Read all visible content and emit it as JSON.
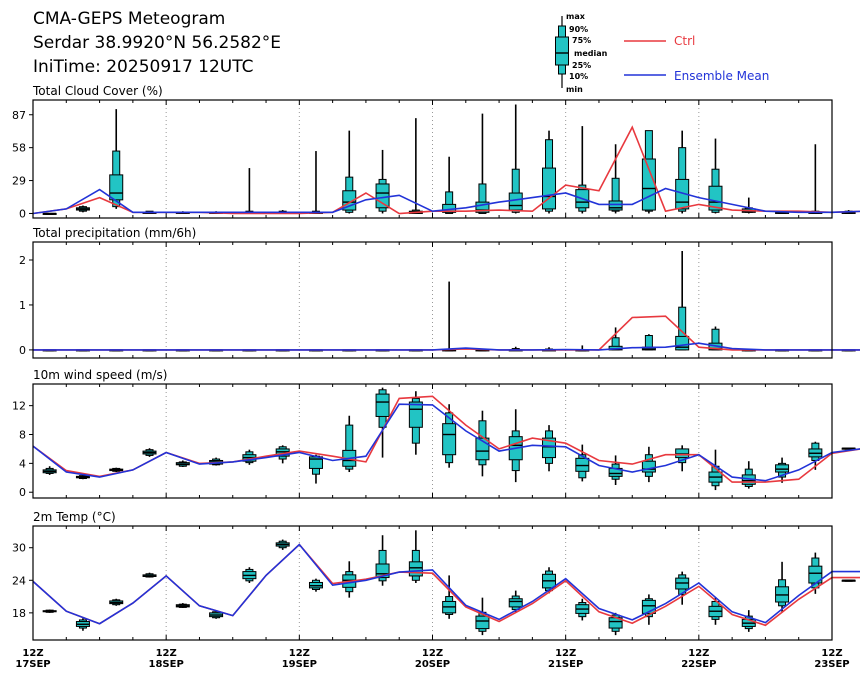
{
  "header": {
    "title": "CMA-GEPS Meteogram",
    "location": "Serdar 38.9920°N 56.2582°E",
    "init": "IniTime: 20250917 12UTC"
  },
  "legend": {
    "max": "max",
    "p90": "90%",
    "p75": "75%",
    "median": "median",
    "p25": "25%",
    "p10": "10%",
    "min": "min",
    "ctrl": "Ctrl",
    "mean": "Ensemble Mean"
  },
  "colors": {
    "ctrl": "#e8393f",
    "mean": "#2233d8",
    "box": "#22c4c4"
  },
  "x_axis": {
    "step_hours": 6,
    "labels": [
      {
        "top": "12Z",
        "bottom": "17SEP"
      },
      {
        "top": "12Z",
        "bottom": "18SEP"
      },
      {
        "top": "12Z",
        "bottom": "19SEP"
      },
      {
        "top": "12Z",
        "bottom": "20SEP"
      },
      {
        "top": "12Z",
        "bottom": "21SEP"
      },
      {
        "top": "12Z",
        "bottom": "22SEP"
      },
      {
        "top": "12Z",
        "bottom": "23SEP"
      }
    ]
  },
  "chart_data": [
    {
      "type": "box",
      "title": "Total Cloud Cover (%)",
      "ylim": [
        -4,
        100
      ],
      "yticks": [
        0,
        29,
        58,
        87
      ],
      "grid": "vertical dotted",
      "ctrl": [
        0,
        4,
        14,
        1,
        1,
        1,
        0,
        0,
        0,
        1,
        18,
        0,
        2,
        2,
        3,
        2,
        25,
        20,
        76,
        2,
        8,
        3,
        2,
        2,
        1,
        2
      ],
      "mean": [
        0,
        4,
        21,
        1,
        1,
        1,
        1,
        1,
        1,
        1,
        12,
        16,
        2,
        5,
        10,
        14,
        18,
        8,
        8,
        22,
        14,
        8,
        2,
        1,
        1,
        2
      ],
      "boxes": [
        [
          0,
          0,
          0,
          0,
          0,
          0,
          0
        ],
        [
          1,
          2,
          3,
          4,
          5,
          6,
          7
        ],
        [
          4,
          6,
          12,
          18,
          34,
          55,
          92
        ],
        [
          0,
          0,
          0,
          1,
          1,
          2,
          2
        ],
        [
          0,
          0,
          0,
          1,
          1,
          1,
          2
        ],
        [
          0,
          0,
          0,
          1,
          1,
          1,
          2
        ],
        [
          0,
          0,
          0,
          1,
          1,
          2,
          40
        ],
        [
          0,
          0,
          0,
          1,
          1,
          2,
          3
        ],
        [
          0,
          0,
          0,
          1,
          1,
          2,
          55
        ],
        [
          0,
          1,
          3,
          10,
          20,
          32,
          73
        ],
        [
          0,
          2,
          5,
          18,
          26,
          30,
          56
        ],
        [
          0,
          0,
          0,
          1,
          2,
          3,
          84
        ],
        [
          0,
          0,
          1,
          2,
          8,
          19,
          50
        ],
        [
          0,
          0,
          1,
          3,
          10,
          26,
          88
        ],
        [
          0,
          1,
          3,
          7,
          18,
          39,
          96
        ],
        [
          0,
          2,
          4,
          15,
          40,
          65,
          73
        ],
        [
          0,
          2,
          5,
          10,
          21,
          25,
          77
        ],
        [
          0,
          2,
          3,
          5,
          11,
          31,
          61
        ],
        [
          0,
          2,
          3,
          22,
          48,
          73,
          73
        ],
        [
          0,
          2,
          4,
          10,
          30,
          58,
          73
        ],
        [
          0,
          1,
          3,
          10,
          24,
          39,
          66
        ],
        [
          0,
          1,
          1,
          2,
          4,
          5,
          14
        ],
        [
          0,
          0,
          0,
          1,
          1,
          2,
          2
        ],
        [
          0,
          0,
          0,
          1,
          1,
          2,
          61
        ],
        [
          0,
          0,
          0,
          1,
          1,
          2,
          3
        ]
      ]
    },
    {
      "type": "box",
      "title": "Total precipitation (mm/6h)",
      "ylim": [
        -0.18,
        2.4
      ],
      "yticks": [
        0,
        1,
        2
      ],
      "grid": "vertical dotted",
      "ctrl": [
        0,
        0,
        0,
        0,
        0,
        0,
        0,
        0,
        0,
        0,
        0,
        0,
        0,
        0.02,
        0,
        0,
        0,
        0,
        0.72,
        0.75,
        0.06,
        0,
        0,
        0,
        0,
        0
      ],
      "mean": [
        0,
        0,
        0,
        0,
        0,
        0,
        0,
        0,
        0,
        0,
        0,
        0,
        0,
        0.04,
        0,
        0,
        0.01,
        0,
        0.05,
        0.06,
        0.15,
        0.03,
        0,
        0,
        0,
        0
      ],
      "boxes": [
        [
          0,
          0,
          0,
          0,
          0,
          0,
          0
        ],
        [
          0,
          0,
          0,
          0,
          0,
          0,
          0
        ],
        [
          0,
          0,
          0,
          0,
          0,
          0,
          0
        ],
        [
          0,
          0,
          0,
          0,
          0,
          0,
          0
        ],
        [
          0,
          0,
          0,
          0,
          0,
          0,
          0
        ],
        [
          0,
          0,
          0,
          0,
          0,
          0,
          0
        ],
        [
          0,
          0,
          0,
          0,
          0,
          0,
          0
        ],
        [
          0,
          0,
          0,
          0,
          0,
          0,
          0
        ],
        [
          0,
          0,
          0,
          0,
          0,
          0,
          0
        ],
        [
          0,
          0,
          0,
          0,
          0,
          0,
          0
        ],
        [
          0,
          0,
          0,
          0,
          0,
          0,
          0
        ],
        [
          0,
          0,
          0,
          0,
          0,
          0,
          0
        ],
        [
          0,
          0,
          0,
          0,
          0,
          0,
          1.52
        ],
        [
          0,
          0,
          0,
          0,
          0,
          0,
          0.03
        ],
        [
          0,
          0,
          0,
          0,
          0,
          0.03,
          0.07
        ],
        [
          0,
          0,
          0,
          0,
          0,
          0.02,
          0.06
        ],
        [
          0,
          0,
          0,
          0,
          0,
          0,
          0.1
        ],
        [
          0,
          0,
          0,
          0.02,
          0.08,
          0.27,
          0.5
        ],
        [
          0,
          0,
          0,
          0.02,
          0.06,
          0.32,
          0.35
        ],
        [
          0,
          0,
          0,
          0.06,
          0.3,
          0.95,
          2.2
        ],
        [
          0,
          0,
          0,
          0.03,
          0.15,
          0.46,
          0.52
        ],
        [
          0,
          0,
          0,
          0,
          0,
          0,
          0
        ],
        [
          0,
          0,
          0,
          0,
          0,
          0,
          0
        ],
        [
          0,
          0,
          0,
          0,
          0,
          0,
          0
        ],
        [
          0,
          0,
          0,
          0,
          0,
          0,
          0
        ]
      ]
    },
    {
      "type": "box",
      "title": "10m wind speed (m/s)",
      "ylim": [
        -0.8,
        15
      ],
      "yticks": [
        0,
        4,
        8,
        12
      ],
      "grid": "vertical dotted",
      "ctrl": [
        6.4,
        3.0,
        2.2,
        3.1,
        5.5,
        4.0,
        4.2,
        5.0,
        5.7,
        5.0,
        4.2,
        13.0,
        13.3,
        9.3,
        6.0,
        7.5,
        6.8,
        4.4,
        3.9,
        5.2,
        5.2,
        1.4,
        1.4,
        1.8,
        5.4,
        6.1
      ],
      "mean": [
        6.4,
        2.8,
        2.1,
        3.1,
        5.5,
        3.9,
        4.2,
        4.8,
        5.5,
        4.4,
        5.0,
        12.2,
        12.1,
        8.5,
        5.7,
        6.5,
        6.3,
        3.7,
        2.8,
        3.7,
        5.2,
        2.1,
        1.6,
        3.1,
        5.5,
        6.1
      ],
      "boxes": [
        [
          2.4,
          2.6,
          2.7,
          2.9,
          3.1,
          3.3,
          3.6
        ],
        [
          1.8,
          1.9,
          2.0,
          2.1,
          2.2,
          2.3,
          2.4
        ],
        [
          2.8,
          2.9,
          3.0,
          3.1,
          3.2,
          3.3,
          3.4
        ],
        [
          4.9,
          5.1,
          5.3,
          5.5,
          5.7,
          5.9,
          6.1
        ],
        [
          3.5,
          3.6,
          3.8,
          3.9,
          4.1,
          4.2,
          4.4
        ],
        [
          3.7,
          3.8,
          3.9,
          4.2,
          4.4,
          4.6,
          4.8
        ],
        [
          3.8,
          4.1,
          4.3,
          4.8,
          5.2,
          5.6,
          5.9
        ],
        [
          4.0,
          4.6,
          5.0,
          5.6,
          6.0,
          6.3,
          6.5
        ],
        [
          1.2,
          2.5,
          3.3,
          4.6,
          4.9,
          5.0,
          5.2
        ],
        [
          2.8,
          3.2,
          3.6,
          4.4,
          5.8,
          9.3,
          10.6
        ],
        [
          4.8,
          9.0,
          10.5,
          12.5,
          13.6,
          14.2,
          14.5
        ],
        [
          5.2,
          6.8,
          9.0,
          11.5,
          12.5,
          13.0,
          14.0
        ],
        [
          3.4,
          4.1,
          5.2,
          8.0,
          9.5,
          11.0,
          12.2
        ],
        [
          2.2,
          3.8,
          4.5,
          5.7,
          7.5,
          9.9,
          11.3
        ],
        [
          1.4,
          3.0,
          4.5,
          6.5,
          7.7,
          8.5,
          11.5
        ],
        [
          2.9,
          4.0,
          4.8,
          6.3,
          7.5,
          8.5,
          9.3
        ],
        [
          1.5,
          2.0,
          2.9,
          3.7,
          4.7,
          5.2,
          6.6
        ],
        [
          1.0,
          1.8,
          2.2,
          2.6,
          3.3,
          3.9,
          5.1
        ],
        [
          1.4,
          2.2,
          2.8,
          3.2,
          4.3,
          5.2,
          6.3
        ],
        [
          2.9,
          4.1,
          4.8,
          5.3,
          6.0,
          6.0,
          6.5
        ],
        [
          0.3,
          0.9,
          1.4,
          2.1,
          2.8,
          3.6,
          5.9
        ],
        [
          0.5,
          0.8,
          1.1,
          1.6,
          2.4,
          3.2,
          4.3
        ],
        [
          1.3,
          2.1,
          2.8,
          3.2,
          3.8,
          4.0,
          4.8
        ],
        [
          3.1,
          4.4,
          4.9,
          5.4,
          6.0,
          6.8,
          7.0
        ],
        [
          6.1,
          6.1,
          6.1,
          6.1,
          6.1,
          6.1,
          6.1
        ]
      ]
    },
    {
      "type": "box",
      "title": "2m Temp (°C)",
      "ylim": [
        13,
        34
      ],
      "yticks": [
        18,
        24,
        30
      ],
      "grid": "vertical dotted",
      "ctrl": [
        23.8,
        18.3,
        16.0,
        19.8,
        24.8,
        19.3,
        17.5,
        24.9,
        30.6,
        23.4,
        24.2,
        25.5,
        25.3,
        19.1,
        16.4,
        19.7,
        23.9,
        18.2,
        16.1,
        19.2,
        22.9,
        17.7,
        15.7,
        20.5,
        24.5,
        24.5
      ],
      "mean": [
        23.8,
        18.3,
        16.0,
        19.8,
        24.8,
        19.3,
        17.5,
        24.9,
        30.6,
        23.1,
        24.0,
        25.5,
        25.9,
        19.4,
        16.8,
        20.1,
        24.3,
        18.8,
        16.7,
        19.7,
        23.5,
        18.2,
        16.2,
        21.2,
        25.6,
        25.6
      ],
      "boxes": [
        [
          18.0,
          18.1,
          18.2,
          18.3,
          18.4,
          18.5,
          18.6
        ],
        [
          14.7,
          15.2,
          15.5,
          15.9,
          16.4,
          16.7,
          17.0
        ],
        [
          19.3,
          19.5,
          19.7,
          19.9,
          20.2,
          20.4,
          20.6
        ],
        [
          24.5,
          24.6,
          24.7,
          24.8,
          25.0,
          25.2,
          25.4
        ],
        [
          18.9,
          19.0,
          19.1,
          19.3,
          19.5,
          19.6,
          19.8
        ],
        [
          16.9,
          17.1,
          17.3,
          17.6,
          18.0,
          18.2,
          18.5
        ],
        [
          23.5,
          23.9,
          24.3,
          24.9,
          25.6,
          26.0,
          26.4
        ],
        [
          29.6,
          30.0,
          30.3,
          30.6,
          30.9,
          31.2,
          31.5
        ],
        [
          21.9,
          22.3,
          22.6,
          23.0,
          23.6,
          24.0,
          24.3
        ],
        [
          20.8,
          21.9,
          22.7,
          24.0,
          25.0,
          25.6,
          27.5
        ],
        [
          23.0,
          23.9,
          24.5,
          25.2,
          27.0,
          29.5,
          32.3
        ],
        [
          23.5,
          24.0,
          24.8,
          26.3,
          27.4,
          29.5,
          33.2
        ],
        [
          16.9,
          17.7,
          18.0,
          19.1,
          20.1,
          21.0,
          24.9
        ],
        [
          13.9,
          14.6,
          15.1,
          16.5,
          17.4,
          18.1,
          20.8
        ],
        [
          18.0,
          18.6,
          19.1,
          20.1,
          20.6,
          21.1,
          22.1
        ],
        [
          21.6,
          22.1,
          22.6,
          23.9,
          25.1,
          25.7,
          26.4
        ],
        [
          16.6,
          17.3,
          17.9,
          18.7,
          19.5,
          19.9,
          20.6
        ],
        [
          13.9,
          14.6,
          15.2,
          16.4,
          17.1,
          17.6,
          18.0
        ],
        [
          15.8,
          17.3,
          17.9,
          19.3,
          20.3,
          20.6,
          21.4
        ],
        [
          19.5,
          21.4,
          22.4,
          23.5,
          24.4,
          25.0,
          25.6
        ],
        [
          15.8,
          16.8,
          17.3,
          18.3,
          19.2,
          20.1,
          20.9
        ],
        [
          14.5,
          15.1,
          15.5,
          16.1,
          16.8,
          17.4,
          18.5
        ],
        [
          18.2,
          19.3,
          20.0,
          21.3,
          22.8,
          24.1,
          27.4
        ],
        [
          21.5,
          22.6,
          23.5,
          25.3,
          26.6,
          28.1,
          29.1
        ],
        [
          24.0,
          24.0,
          24.0,
          24.0,
          24.0,
          24.0,
          24.0
        ]
      ]
    }
  ]
}
